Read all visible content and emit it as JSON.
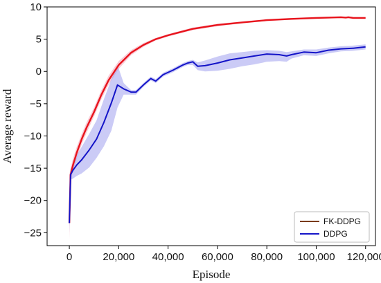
{
  "chart_data": {
    "type": "line",
    "xlabel": "Episode",
    "ylabel": "Average reward",
    "xlim": [
      -9000,
      124000
    ],
    "ylim": [
      -27,
      10
    ],
    "x_ticks": [
      0,
      20000,
      40000,
      60000,
      80000,
      100000,
      120000
    ],
    "x_tick_labels": [
      "0",
      "20,000",
      "40,000",
      "60,000",
      "80,000",
      "100,000",
      "120,000"
    ],
    "y_ticks": [
      -25,
      -20,
      -15,
      -10,
      -5,
      0,
      5,
      10
    ],
    "y_tick_labels": [
      "−25",
      "−20",
      "−15",
      "−10",
      "−5",
      "0",
      "5",
      "10"
    ],
    "legend_position": "bottom-right",
    "legend": [
      {
        "label": "FK-DDPG",
        "color": "#7a3b12"
      },
      {
        "label": "DDPG",
        "color": "#1414c8"
      }
    ],
    "series": [
      {
        "name": "FK-DDPG",
        "color": "#e8141c",
        "band_color": "#f4a0b4",
        "x": [
          0,
          500,
          1500,
          3000,
          5000,
          7000,
          10000,
          13000,
          16000,
          20000,
          25000,
          30000,
          35000,
          40000,
          50000,
          60000,
          70000,
          80000,
          90000,
          100000,
          110000,
          112000,
          113000,
          115000,
          120000
        ],
        "y": [
          -23.5,
          -16,
          -14.5,
          -12.6,
          -10.5,
          -8.7,
          -6.3,
          -3.6,
          -1.3,
          1.0,
          2.9,
          4.1,
          5.0,
          5.6,
          6.6,
          7.2,
          7.6,
          7.95,
          8.15,
          8.3,
          8.4,
          8.35,
          8.4,
          8.3,
          8.3
        ],
        "lower": [
          -26,
          -17,
          -15.5,
          -13.5,
          -11.3,
          -9.5,
          -7.0,
          -4.3,
          -2.0,
          0.4,
          2.5,
          3.8,
          4.8,
          5.4,
          6.4,
          7.0,
          7.45,
          7.8,
          8.0,
          8.15,
          8.25,
          8.2,
          8.25,
          8.15,
          8.15
        ],
        "upper": [
          -16,
          -15,
          -13.5,
          -11.7,
          -9.7,
          -7.9,
          -5.6,
          -2.9,
          -0.6,
          1.6,
          3.3,
          4.4,
          5.2,
          5.8,
          6.8,
          7.4,
          7.75,
          8.1,
          8.3,
          8.45,
          8.55,
          8.5,
          8.55,
          8.45,
          8.45
        ]
      },
      {
        "name": "DDPG",
        "color": "#1414c8",
        "band_color": "#a0a0ee",
        "x": [
          0,
          500,
          1500,
          3000,
          5000,
          8000,
          11000,
          14000,
          17000,
          19500,
          22000,
          25000,
          27000,
          30000,
          33000,
          35000,
          38000,
          42000,
          46000,
          48000,
          50000,
          52000,
          55000,
          60000,
          65000,
          70000,
          75000,
          80000,
          85000,
          88000,
          90000,
          95000,
          100000,
          105000,
          110000,
          115000,
          120000
        ],
        "y": [
          -23.5,
          -16,
          -15.3,
          -14.5,
          -13.7,
          -12.2,
          -10.5,
          -7.9,
          -4.9,
          -2.1,
          -2.7,
          -3.2,
          -3.2,
          -2.1,
          -1.1,
          -1.5,
          -0.5,
          0.2,
          1.0,
          1.3,
          1.5,
          0.8,
          0.9,
          1.3,
          1.8,
          2.1,
          2.4,
          2.7,
          2.6,
          2.4,
          2.6,
          3.0,
          2.9,
          3.3,
          3.5,
          3.6,
          3.8
        ],
        "lower": [
          -25,
          -16.8,
          -16.6,
          -16.2,
          -15.8,
          -14.9,
          -13.4,
          -11.6,
          -9.2,
          -5.6,
          -3.6,
          -3.6,
          -3.6,
          -2.4,
          -1.4,
          -1.8,
          -0.8,
          -0.1,
          0.7,
          1.0,
          1.0,
          0.2,
          0.0,
          0.1,
          0.4,
          0.8,
          1.1,
          1.5,
          1.6,
          1.5,
          2.0,
          2.5,
          2.4,
          2.8,
          3.1,
          3.2,
          3.4
        ],
        "upper": [
          -21,
          -15.2,
          -14.2,
          -13.0,
          -11.7,
          -9.7,
          -7.6,
          -4.3,
          -1.2,
          1.0,
          -1.8,
          -2.9,
          -2.9,
          -1.8,
          -0.8,
          -1.2,
          -0.2,
          0.5,
          1.3,
          1.6,
          1.8,
          1.4,
          1.7,
          2.3,
          2.8,
          3.0,
          3.2,
          3.3,
          3.2,
          3.0,
          3.1,
          3.4,
          3.4,
          3.7,
          3.9,
          4.0,
          4.2
        ]
      }
    ]
  }
}
